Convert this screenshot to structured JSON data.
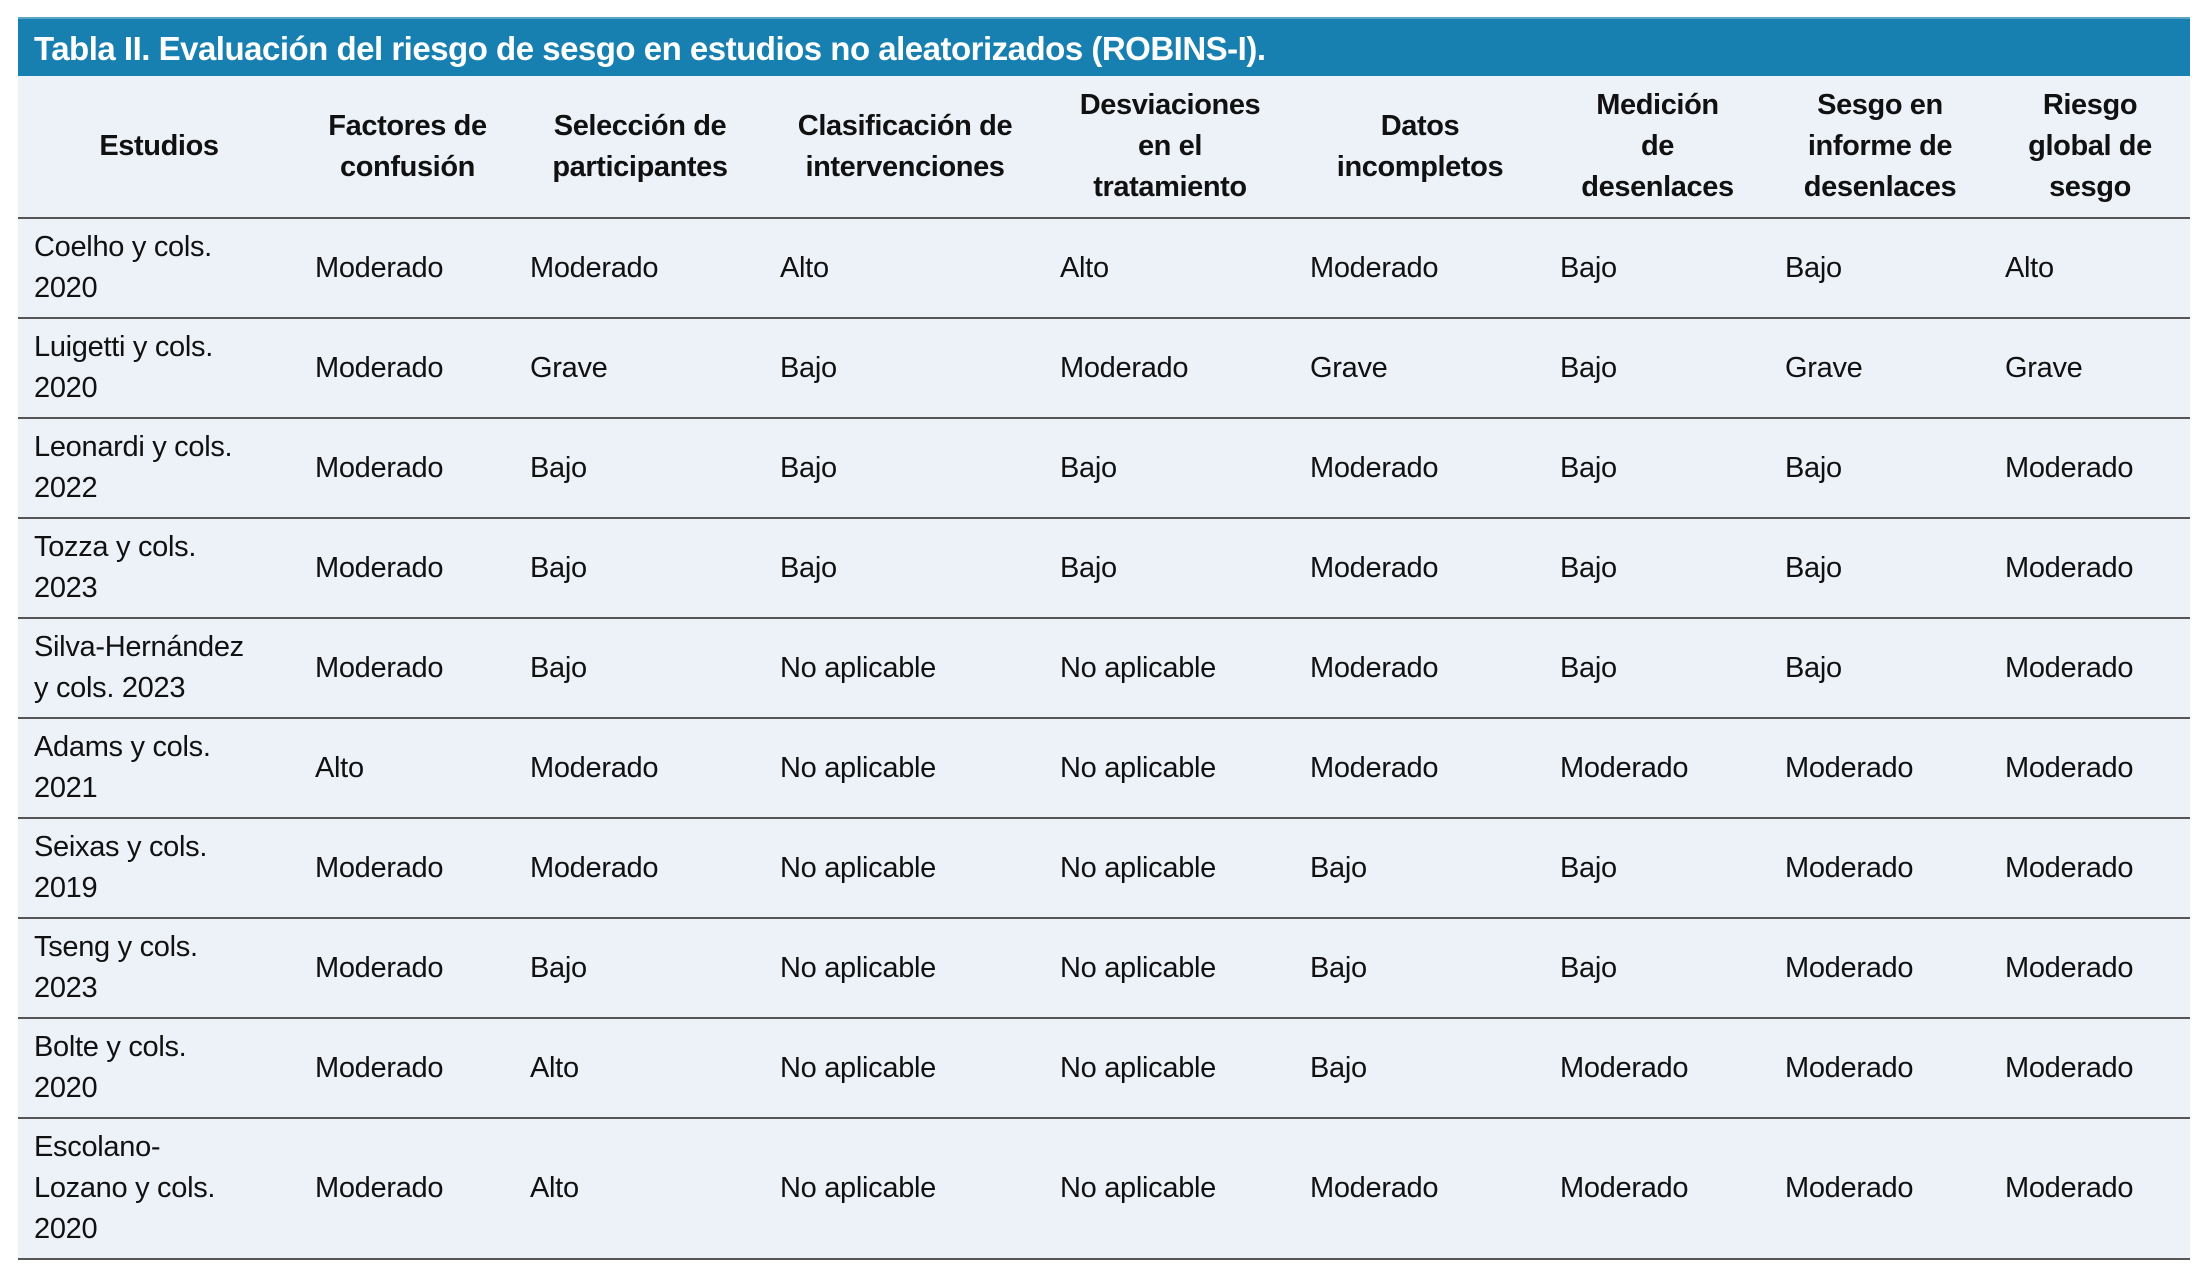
{
  "title": "Tabla II. Evaluación del riesgo de sesgo en estudios no aleatorizados (ROBINS-I).",
  "colors": {
    "title_bar": "#1780b0",
    "table_bg": "#edf1f8"
  },
  "headers": [
    "Estudios",
    "Factores de\nconfusión",
    "Selección de\nparticipantes",
    "Clasificación de\nintervenciones",
    "Desviaciones\nen el\ntratamiento",
    "Datos\nincompletos",
    "Medición\nde\ndesenlaces",
    "Sesgo en\ninforme de\ndesenlaces",
    "Riesgo\nglobal de\nsesgo"
  ],
  "rows": [
    [
      "Coelho y cols.\n2020",
      "Moderado",
      "Moderado",
      "Alto",
      "Alto",
      "Moderado",
      "Bajo",
      "Bajo",
      "Alto"
    ],
    [
      "Luigetti y cols.\n2020",
      "Moderado",
      "Grave",
      "Bajo",
      "Moderado",
      "Grave",
      "Bajo",
      "Grave",
      "Grave"
    ],
    [
      "Leonardi y cols.\n2022",
      "Moderado",
      "Bajo",
      "Bajo",
      "Bajo",
      "Moderado",
      "Bajo",
      "Bajo",
      "Moderado"
    ],
    [
      "Tozza y cols.\n2023",
      "Moderado",
      "Bajo",
      "Bajo",
      "Bajo",
      "Moderado",
      "Bajo",
      "Bajo",
      "Moderado"
    ],
    [
      "Silva-Hernández\ny cols. 2023",
      "Moderado",
      "Bajo",
      "No aplicable",
      "No aplicable",
      "Moderado",
      "Bajo",
      "Bajo",
      "Moderado"
    ],
    [
      "Adams y cols.\n2021",
      "Alto",
      "Moderado",
      "No aplicable",
      "No aplicable",
      "Moderado",
      "Moderado",
      "Moderado",
      "Moderado"
    ],
    [
      "Seixas y cols.\n2019",
      "Moderado",
      "Moderado",
      "No aplicable",
      "No aplicable",
      "Bajo",
      "Bajo",
      "Moderado",
      "Moderado"
    ],
    [
      "Tseng y cols.\n2023",
      "Moderado",
      "Bajo",
      "No aplicable",
      "No aplicable",
      "Bajo",
      "Bajo",
      "Moderado",
      "Moderado"
    ],
    [
      "Bolte y cols.\n2020",
      "Moderado",
      "Alto",
      "No aplicable",
      "No aplicable",
      "Bajo",
      "Moderado",
      "Moderado",
      "Moderado"
    ],
    [
      "Escolano-\nLozano y cols.\n2020",
      "Moderado",
      "Alto",
      "No aplicable",
      "No aplicable",
      "Moderado",
      "Moderado",
      "Moderado",
      "Moderado"
    ]
  ]
}
